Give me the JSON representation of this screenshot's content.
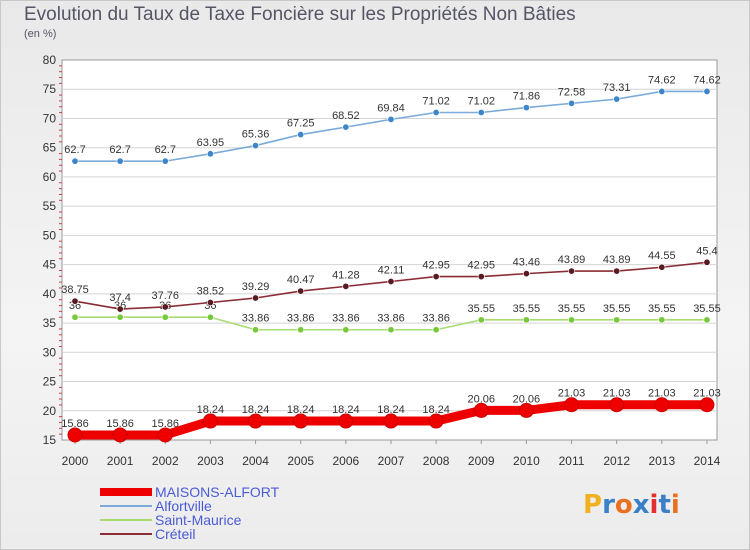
{
  "title": "Evolution du Taux de Taxe Foncière sur les Propriétés Non Bâties",
  "unit": "(en %)",
  "logo": {
    "text": "Proxiti",
    "colors": [
      "#f0b020",
      "#3a80c8",
      "#e87020",
      "#3a80c8",
      "#e03030",
      "#3a80c8",
      "#e87020"
    ]
  },
  "chart_data": {
    "type": "line",
    "title": "Evolution du Taux de Taxe Foncière sur les Propriétés Non Bâties",
    "ylabel": "(en %)",
    "xlabel": "",
    "ylim": [
      15,
      80
    ],
    "yticks": [
      "15",
      "20",
      "25",
      "30",
      "35",
      "40",
      "45",
      "50",
      "55",
      "60",
      "65",
      "70",
      "75",
      "80"
    ],
    "x": [
      "2000",
      "2001",
      "2002",
      "2003",
      "2004",
      "2005",
      "2006",
      "2007",
      "2008",
      "2009",
      "2010",
      "2011",
      "2012",
      "2013",
      "2014"
    ],
    "legend_position": "bottom-left",
    "series": [
      {
        "name": "MAISONS-ALFORT",
        "color": "#ee0000",
        "marker_color": "#ee0000",
        "thick": true,
        "values": [
          15.86,
          15.86,
          15.86,
          18.24,
          18.24,
          18.24,
          18.24,
          18.24,
          18.24,
          20.06,
          20.06,
          21.03,
          21.03,
          21.03,
          21.03
        ],
        "labels": [
          "15.86",
          "15.86",
          "15.86",
          "18.24",
          "18.24",
          "18.24",
          "18.24",
          "18.24",
          "18.24",
          "20.06",
          "20.06",
          "21.03",
          "21.03",
          "21.03",
          "21.03"
        ]
      },
      {
        "name": "Alfortville",
        "color": "#7aaad8",
        "marker_color": "#3f86c8",
        "thick": false,
        "values": [
          62.7,
          62.7,
          62.7,
          63.95,
          65.36,
          67.25,
          68.52,
          69.84,
          71.02,
          71.02,
          71.86,
          72.58,
          73.31,
          74.62,
          74.62
        ],
        "labels": [
          "62.7",
          "62.7",
          "62.7",
          "63.95",
          "65.36",
          "67.25",
          "68.52",
          "69.84",
          "71.02",
          "71.02",
          "71.86",
          "72.58",
          "73.31",
          "74.62",
          "74.62"
        ]
      },
      {
        "name": "Saint-Maurice",
        "color": "#a8dc70",
        "marker_color": "#78c83c",
        "thick": false,
        "values": [
          36,
          36,
          36,
          36,
          33.86,
          33.86,
          33.86,
          33.86,
          33.86,
          35.55,
          35.55,
          35.55,
          35.55,
          35.55,
          35.55
        ],
        "labels": [
          "36",
          "36",
          "36",
          "36",
          "33.86",
          "33.86",
          "33.86",
          "33.86",
          "33.86",
          "35.55",
          "35.55",
          "35.55",
          "35.55",
          "35.55",
          "35.55"
        ]
      },
      {
        "name": "Créteil",
        "color": "#8a2c36",
        "marker_color": "#5a1a22",
        "thick": false,
        "values": [
          38.75,
          37.4,
          37.76,
          38.52,
          39.29,
          40.47,
          41.28,
          42.11,
          42.95,
          42.95,
          43.46,
          43.89,
          43.89,
          44.55,
          45.4
        ],
        "labels": [
          "38.75",
          "37.4",
          "37.76",
          "38.52",
          "39.29",
          "40.47",
          "41.28",
          "42.11",
          "42.95",
          "42.95",
          "43.46",
          "43.89",
          "43.89",
          "44.55",
          "45.4"
        ]
      }
    ]
  }
}
